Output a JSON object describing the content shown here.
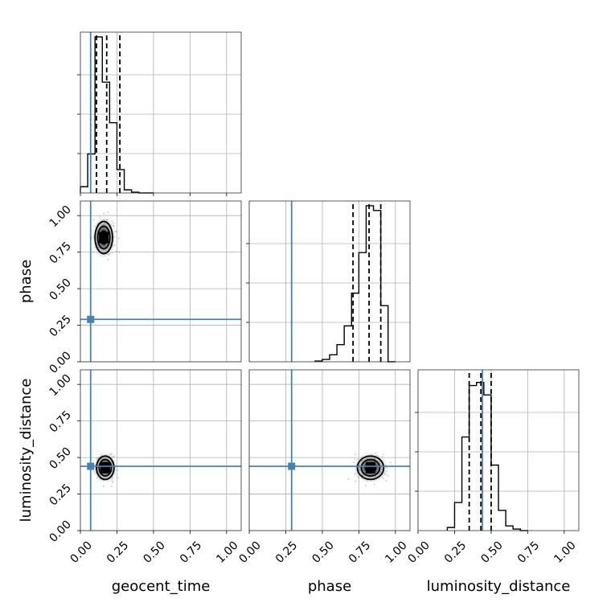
{
  "chart_data": {
    "type": "corner",
    "parameters": [
      "geocent_time",
      "phase",
      "luminosity_distance"
    ],
    "range": [
      0,
      1.1
    ],
    "ticks": [
      0.0,
      0.25,
      0.5,
      0.75,
      1.0
    ],
    "tick_labels": [
      "0.00",
      "0.25",
      "0.50",
      "0.75",
      "1.00"
    ],
    "truths": {
      "geocent_time": 0.07,
      "phase": 0.29,
      "luminosity_distance": 0.44
    },
    "colors": {
      "truth": "#4682b4",
      "hist": "#000000",
      "density": "#000000"
    },
    "grid": true,
    "marginals": [
      {
        "parameter": "geocent_time",
        "bin_edges": [
          0.0,
          0.05,
          0.1,
          0.15,
          0.2,
          0.25,
          0.3,
          0.35,
          0.4,
          0.45,
          0.5
        ],
        "counts": [
          0.04,
          0.25,
          1.0,
          0.71,
          0.45,
          0.15,
          0.02,
          0.005,
          0,
          0
        ],
        "quantiles": [
          0.11,
          0.18,
          0.27
        ]
      },
      {
        "parameter": "phase",
        "bin_edges": [
          0.45,
          0.5,
          0.55,
          0.6,
          0.65,
          0.7,
          0.75,
          0.8,
          0.85,
          0.9,
          0.95,
          1.0
        ],
        "counts": [
          0.005,
          0.015,
          0.045,
          0.11,
          0.23,
          0.44,
          0.7,
          1.0,
          0.97,
          0.36,
          0
        ],
        "quantiles": [
          0.71,
          0.82,
          0.9
        ]
      },
      {
        "parameter": "luminosity_distance",
        "bin_edges": [
          0.2,
          0.25,
          0.3,
          0.35,
          0.4,
          0.45,
          0.5,
          0.55,
          0.6,
          0.65,
          0.7,
          0.75
        ],
        "counts": [
          0.02,
          0.18,
          0.6,
          0.93,
          0.95,
          0.87,
          0.42,
          0.13,
          0.03,
          0.01,
          0
        ],
        "quantiles": [
          0.35,
          0.43,
          0.5
        ]
      }
    ],
    "joints": [
      {
        "x": "geocent_time",
        "y": "phase",
        "center": [
          0.16,
          0.85
        ],
        "spread": [
          0.06,
          0.11
        ]
      },
      {
        "x": "geocent_time",
        "y": "luminosity_distance",
        "center": [
          0.17,
          0.43
        ],
        "spread": [
          0.06,
          0.08
        ]
      },
      {
        "x": "phase",
        "y": "luminosity_distance",
        "center": [
          0.83,
          0.43
        ],
        "spread": [
          0.09,
          0.08
        ]
      }
    ]
  }
}
